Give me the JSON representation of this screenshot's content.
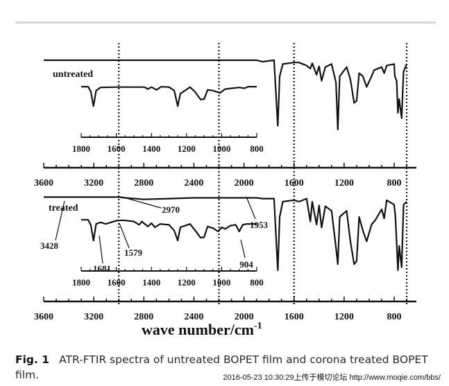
{
  "chart_data": {
    "type": "line",
    "xlabel": "wave number/cm",
    "xlabel_superscript": "-1",
    "xlim": [
      3600,
      700
    ],
    "x_ticks": [
      "3600",
      "3200",
      "2800",
      "2400",
      "2000",
      "1600",
      "1200",
      "800"
    ],
    "inset_ticks": [
      "1800",
      "1600",
      "1400",
      "1200",
      "1000",
      "800"
    ],
    "reference_lines": [
      3000,
      2200,
      1600,
      700
    ],
    "panels": [
      {
        "name": "untreated",
        "series": [
          {
            "range": "3600-700",
            "points": [
              [
                3600,
                9
              ],
              [
                3400,
                9
              ],
              [
                3000,
                9
              ],
              [
                2600,
                9
              ],
              [
                2200,
                9
              ],
              [
                1900,
                9
              ],
              [
                1850,
                11
              ],
              [
                1760,
                9
              ],
              [
                1730,
                95
              ],
              [
                1715,
                30
              ],
              [
                1690,
                14
              ],
              [
                1600,
                12
              ],
              [
                1560,
                12
              ],
              [
                1500,
                16
              ],
              [
                1470,
                20
              ],
              [
                1455,
                13
              ],
              [
                1420,
                28
              ],
              [
                1400,
                17
              ],
              [
                1380,
                36
              ],
              [
                1350,
                18
              ],
              [
                1300,
                14
              ],
              [
                1265,
                38
              ],
              [
                1250,
                100
              ],
              [
                1235,
                30
              ],
              [
                1180,
                18
              ],
              [
                1150,
                34
              ],
              [
                1120,
                65
              ],
              [
                1100,
                62
              ],
              [
                1080,
                26
              ],
              [
                1050,
                30
              ],
              [
                1020,
                44
              ],
              [
                980,
                30
              ],
              [
                960,
                22
              ],
              [
                900,
                18
              ],
              [
                880,
                26
              ],
              [
                860,
                16
              ],
              [
                800,
                14
              ],
              [
                795,
                30
              ],
              [
                780,
                36
              ],
              [
                770,
                78
              ],
              [
                760,
                60
              ],
              [
                740,
                85
              ],
              [
                725,
                24
              ],
              [
                700,
                14
              ]
            ]
          },
          {
            "range": "1800-800",
            "points": [
              [
                1800,
                2
              ],
              [
                1760,
                2
              ],
              [
                1745,
                15
              ],
              [
                1730,
                52
              ],
              [
                1715,
                12
              ],
              [
                1690,
                4
              ],
              [
                1600,
                3
              ],
              [
                1500,
                3
              ],
              [
                1440,
                3
              ],
              [
                1420,
                8
              ],
              [
                1400,
                3
              ],
              [
                1370,
                10
              ],
              [
                1345,
                2
              ],
              [
                1300,
                3
              ],
              [
                1270,
                12
              ],
              [
                1250,
                52
              ],
              [
                1235,
                20
              ],
              [
                1180,
                3
              ],
              [
                1150,
                16
              ],
              [
                1120,
                35
              ],
              [
                1100,
                34
              ],
              [
                1080,
                10
              ],
              [
                1050,
                12
              ],
              [
                1010,
                18
              ],
              [
                980,
                8
              ],
              [
                900,
                4
              ],
              [
                870,
                6
              ],
              [
                850,
                2
              ],
              [
                800,
                2
              ]
            ]
          }
        ]
      },
      {
        "name": "treated",
        "series": [
          {
            "range": "3600-700",
            "points": [
              [
                3600,
                4
              ],
              [
                3200,
                4
              ],
              [
                3000,
                4
              ],
              [
                2950,
                5
              ],
              [
                2800,
                7
              ],
              [
                2600,
                6
              ],
              [
                2400,
                5
              ],
              [
                2200,
                5
              ],
              [
                1990,
                5
              ],
              [
                1950,
                5
              ],
              [
                1900,
                5
              ],
              [
                1850,
                6
              ],
              [
                1760,
                6
              ],
              [
                1730,
                100
              ],
              [
                1715,
                30
              ],
              [
                1690,
                10
              ],
              [
                1600,
                8
              ],
              [
                1560,
                10
              ],
              [
                1500,
                6
              ],
              [
                1470,
                36
              ],
              [
                1455,
                10
              ],
              [
                1420,
                40
              ],
              [
                1400,
                15
              ],
              [
                1380,
                44
              ],
              [
                1350,
                16
              ],
              [
                1300,
                22
              ],
              [
                1265,
                70
              ],
              [
                1250,
                92
              ],
              [
                1235,
                30
              ],
              [
                1180,
                22
              ],
              [
                1150,
                62
              ],
              [
                1120,
                92
              ],
              [
                1100,
                88
              ],
              [
                1080,
                30
              ],
              [
                1050,
                48
              ],
              [
                1020,
                62
              ],
              [
                980,
                40
              ],
              [
                950,
                34
              ],
              [
                900,
                20
              ],
              [
                880,
                32
              ],
              [
                860,
                8
              ],
              [
                800,
                14
              ],
              [
                790,
                30
              ],
              [
                770,
                100
              ],
              [
                760,
                68
              ],
              [
                740,
                96
              ],
              [
                725,
                14
              ],
              [
                700,
                10
              ]
            ]
          },
          {
            "range": "1800-800",
            "points": [
              [
                1800,
                2
              ],
              [
                1760,
                2
              ],
              [
                1745,
                15
              ],
              [
                1730,
                52
              ],
              [
                1715,
                12
              ],
              [
                1690,
                8
              ],
              [
                1660,
                12
              ],
              [
                1600,
                4
              ],
              [
                1560,
                3
              ],
              [
                1500,
                6
              ],
              [
                1470,
                14
              ],
              [
                1455,
                6
              ],
              [
                1420,
                18
              ],
              [
                1400,
                10
              ],
              [
                1380,
                20
              ],
              [
                1350,
                12
              ],
              [
                1300,
                14
              ],
              [
                1270,
                28
              ],
              [
                1250,
                52
              ],
              [
                1235,
                20
              ],
              [
                1180,
                12
              ],
              [
                1150,
                28
              ],
              [
                1120,
                45
              ],
              [
                1100,
                44
              ],
              [
                1080,
                18
              ],
              [
                1050,
                22
              ],
              [
                1020,
                30
              ],
              [
                1000,
                20
              ],
              [
                980,
                24
              ],
              [
                950,
                16
              ],
              [
                920,
                14
              ],
              [
                900,
                30
              ],
              [
                880,
                14
              ],
              [
                860,
                12
              ],
              [
                800,
                12
              ]
            ]
          }
        ]
      }
    ],
    "annotations": [
      "2970",
      "1953",
      "3428",
      "1681",
      "1579",
      "904"
    ],
    "caption": {
      "fig_num": "Fig. 1",
      "text": "ATR-FTIR spectra of untreated BOPET film and corona treated BOPET film."
    },
    "watermark": "2016-05-23 10:30:29上传于模切论坛 http://www.moqie.com/bbs/"
  }
}
